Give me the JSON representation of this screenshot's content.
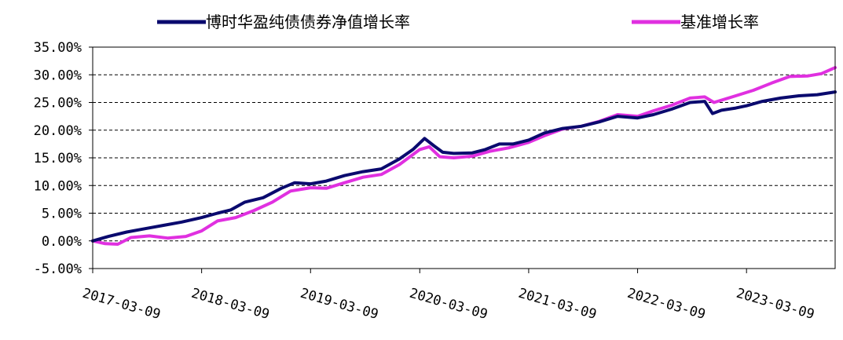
{
  "chart_data": {
    "type": "line",
    "title": "",
    "xlabel": "",
    "ylabel": "",
    "ylim": [
      -5,
      35
    ],
    "y_ticks": [
      -5,
      0,
      5,
      10,
      15,
      20,
      25,
      30,
      35
    ],
    "y_tick_labels": [
      "-5.00%",
      "0.00%",
      "5.00%",
      "10.00%",
      "15.00%",
      "20.00%",
      "25.00%",
      "30.00%",
      "35.00%"
    ],
    "x_range": [
      "2017-03-09",
      "2023-12-31"
    ],
    "x_tick_labels": [
      "2017-03-09",
      "2018-03-09",
      "2019-03-09",
      "2020-03-09",
      "2021-03-09",
      "2022-03-09",
      "2023-03-09"
    ],
    "grid": "horizontal dashed",
    "legend_position": "top",
    "series": [
      {
        "name": "博时华盈纯债债券净值增长率",
        "color": "#0a0a6e",
        "points": [
          [
            "2017-03-09",
            0.0
          ],
          [
            "2017-05-01",
            0.8
          ],
          [
            "2017-07-01",
            1.6
          ],
          [
            "2017-09-01",
            2.2
          ],
          [
            "2017-11-01",
            2.8
          ],
          [
            "2018-01-01",
            3.4
          ],
          [
            "2018-03-09",
            4.2
          ],
          [
            "2018-05-01",
            5.0
          ],
          [
            "2018-06-15",
            5.6
          ],
          [
            "2018-08-01",
            7.0
          ],
          [
            "2018-10-01",
            7.8
          ],
          [
            "2018-12-01",
            9.5
          ],
          [
            "2019-01-15",
            10.5
          ],
          [
            "2019-03-09",
            10.3
          ],
          [
            "2019-05-01",
            10.8
          ],
          [
            "2019-07-01",
            11.8
          ],
          [
            "2019-09-01",
            12.5
          ],
          [
            "2019-11-01",
            13.0
          ],
          [
            "2020-01-01",
            14.8
          ],
          [
            "2020-02-15",
            16.5
          ],
          [
            "2020-03-25",
            18.5
          ],
          [
            "2020-04-25",
            17.2
          ],
          [
            "2020-05-25",
            16.0
          ],
          [
            "2020-07-01",
            15.8
          ],
          [
            "2020-09-01",
            15.9
          ],
          [
            "2020-10-15",
            16.5
          ],
          [
            "2020-12-01",
            17.5
          ],
          [
            "2021-01-15",
            17.5
          ],
          [
            "2021-03-09",
            18.2
          ],
          [
            "2021-05-01",
            19.5
          ],
          [
            "2021-07-01",
            20.3
          ],
          [
            "2021-09-01",
            20.7
          ],
          [
            "2021-11-01",
            21.5
          ],
          [
            "2022-01-01",
            22.5
          ],
          [
            "2022-03-09",
            22.2
          ],
          [
            "2022-05-01",
            22.8
          ],
          [
            "2022-07-01",
            23.8
          ],
          [
            "2022-09-01",
            25.0
          ],
          [
            "2022-10-20",
            25.2
          ],
          [
            "2022-11-15",
            23.0
          ],
          [
            "2022-12-15",
            23.6
          ],
          [
            "2023-02-01",
            24.0
          ],
          [
            "2023-03-09",
            24.4
          ],
          [
            "2023-05-01",
            25.2
          ],
          [
            "2023-07-01",
            25.8
          ],
          [
            "2023-09-01",
            26.2
          ],
          [
            "2023-11-01",
            26.4
          ],
          [
            "2023-12-31",
            26.9
          ]
        ]
      },
      {
        "name": "基准增长率",
        "color": "#e030e0",
        "points": [
          [
            "2017-03-09",
            0.0
          ],
          [
            "2017-04-20",
            -0.5
          ],
          [
            "2017-06-01",
            -0.6
          ],
          [
            "2017-07-15",
            0.6
          ],
          [
            "2017-09-15",
            0.9
          ],
          [
            "2017-11-15",
            0.5
          ],
          [
            "2018-01-15",
            0.8
          ],
          [
            "2018-03-09",
            1.8
          ],
          [
            "2018-05-01",
            3.6
          ],
          [
            "2018-07-01",
            4.2
          ],
          [
            "2018-09-01",
            5.5
          ],
          [
            "2018-11-01",
            7.0
          ],
          [
            "2019-01-01",
            9.0
          ],
          [
            "2019-03-09",
            9.6
          ],
          [
            "2019-05-01",
            9.5
          ],
          [
            "2019-07-01",
            10.5
          ],
          [
            "2019-09-01",
            11.5
          ],
          [
            "2019-11-01",
            12.0
          ],
          [
            "2020-01-01",
            13.8
          ],
          [
            "2020-03-09",
            16.5
          ],
          [
            "2020-04-10",
            17.0
          ],
          [
            "2020-05-15",
            15.2
          ],
          [
            "2020-07-01",
            15.0
          ],
          [
            "2020-09-01",
            15.3
          ],
          [
            "2020-11-01",
            16.2
          ],
          [
            "2021-01-01",
            16.8
          ],
          [
            "2021-03-09",
            17.8
          ],
          [
            "2021-05-01",
            19.0
          ],
          [
            "2021-07-01",
            20.2
          ],
          [
            "2021-09-01",
            20.7
          ],
          [
            "2021-11-01",
            21.6
          ],
          [
            "2022-01-01",
            22.8
          ],
          [
            "2022-03-09",
            22.5
          ],
          [
            "2022-05-01",
            23.5
          ],
          [
            "2022-07-01",
            24.5
          ],
          [
            "2022-09-01",
            25.8
          ],
          [
            "2022-10-20",
            26.0
          ],
          [
            "2022-11-20",
            25.0
          ],
          [
            "2022-12-20",
            25.5
          ],
          [
            "2023-02-01",
            26.2
          ],
          [
            "2023-04-01",
            27.2
          ],
          [
            "2023-06-01",
            28.5
          ],
          [
            "2023-08-01",
            29.7
          ],
          [
            "2023-10-01",
            29.8
          ],
          [
            "2023-11-15",
            30.2
          ],
          [
            "2023-12-31",
            31.3
          ]
        ]
      }
    ]
  }
}
